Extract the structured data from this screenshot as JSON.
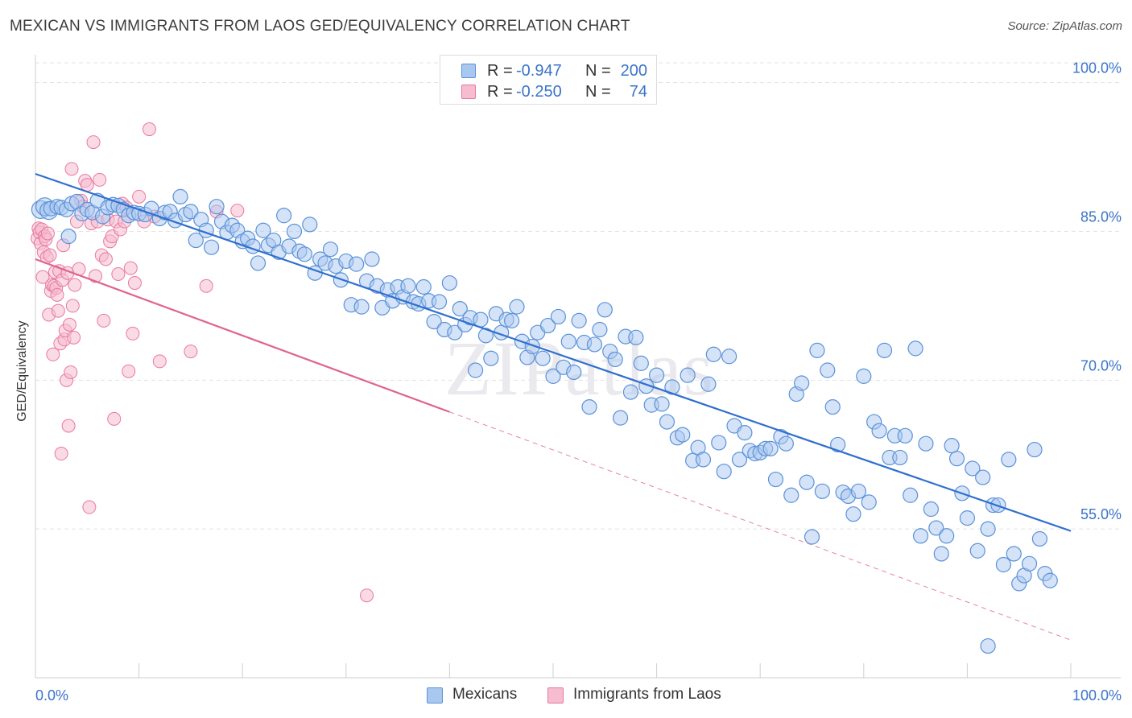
{
  "title": "MEXICAN VS IMMIGRANTS FROM LAOS GED/EQUIVALENCY CORRELATION CHART",
  "source": "Source: ZipAtlas.com",
  "watermark": "ZIPatlas",
  "legend": {
    "rows": [
      {
        "r_label": "R =",
        "r_value": "-0.947",
        "n_label": "N =",
        "n_value": "200"
      },
      {
        "r_label": "R =",
        "r_value": "-0.250",
        "n_label": "N =",
        "n_value": "74"
      }
    ]
  },
  "colors": {
    "blue_fill": "#a9c8f0",
    "blue_stroke": "#5b92d8",
    "blue_line": "#2f6fcf",
    "pink_fill": "#f6bcd0",
    "pink_stroke": "#e8799f",
    "pink_line": "#e0648f",
    "axis_text_blue": "#3a74c9",
    "grid": "#e3e3e3"
  },
  "chart_data": {
    "type": "scatter",
    "title": "MEXICAN VS IMMIGRANTS FROM LAOS GED/EQUIVALENCY CORRELATION CHART",
    "xlabel": "",
    "ylabel": "GED/Equivalency",
    "xlim": [
      0,
      100
    ],
    "ylim": [
      40,
      102
    ],
    "x_tick_labels": [
      "0.0%",
      "100.0%"
    ],
    "y_ticks": [
      55,
      70,
      85,
      100
    ],
    "y_tick_labels": [
      "55.0%",
      "70.0%",
      "85.0%",
      "100.0%"
    ],
    "grid": true,
    "legend_position": "top-center",
    "series": [
      {
        "name": "Mexicans",
        "color": "#5b92d8",
        "r": -0.947,
        "n": 200,
        "trend": {
          "x0": 0,
          "y0": 90.8,
          "x1": 100,
          "y1": 54.8
        },
        "points": [
          [
            0.5,
            87.2
          ],
          [
            0.9,
            87.5
          ],
          [
            1.3,
            87.1
          ],
          [
            1.5,
            87.3
          ],
          [
            2.1,
            87.5
          ],
          [
            2.5,
            87.4
          ],
          [
            3.0,
            87.2
          ],
          [
            3.2,
            84.5
          ],
          [
            3.5,
            87.8
          ],
          [
            4.0,
            88.0
          ],
          [
            4.5,
            86.8
          ],
          [
            5.0,
            87.2
          ],
          [
            5.5,
            86.9
          ],
          [
            6.0,
            88.1
          ],
          [
            6.5,
            86.5
          ],
          [
            7.0,
            87.4
          ],
          [
            7.5,
            87.7
          ],
          [
            8.0,
            87.6
          ],
          [
            8.5,
            87.2
          ],
          [
            9.0,
            86.6
          ],
          [
            9.5,
            86.9
          ],
          [
            10.0,
            86.8
          ],
          [
            10.6,
            86.7
          ],
          [
            11.2,
            87.3
          ],
          [
            12.0,
            86.3
          ],
          [
            12.5,
            86.9
          ],
          [
            13.0,
            87.0
          ],
          [
            13.5,
            86.1
          ],
          [
            14.0,
            88.5
          ],
          [
            14.5,
            86.7
          ],
          [
            15.0,
            87.0
          ],
          [
            15.5,
            84.1
          ],
          [
            16.0,
            86.2
          ],
          [
            16.5,
            85.1
          ],
          [
            17.0,
            83.4
          ],
          [
            17.5,
            87.5
          ],
          [
            18.0,
            86.0
          ],
          [
            18.5,
            84.9
          ],
          [
            19.0,
            85.6
          ],
          [
            19.5,
            85.1
          ],
          [
            20.0,
            84.0
          ],
          [
            20.5,
            84.3
          ],
          [
            21.0,
            83.5
          ],
          [
            21.5,
            81.8
          ],
          [
            22.0,
            85.1
          ],
          [
            22.5,
            83.6
          ],
          [
            23.0,
            84.1
          ],
          [
            23.5,
            82.9
          ],
          [
            24.0,
            86.6
          ],
          [
            24.5,
            83.5
          ],
          [
            25.0,
            85.0
          ],
          [
            25.5,
            83.0
          ],
          [
            26.0,
            82.7
          ],
          [
            26.5,
            85.7
          ],
          [
            27.0,
            80.8
          ],
          [
            27.5,
            82.2
          ],
          [
            28.0,
            81.8
          ],
          [
            28.5,
            83.2
          ],
          [
            29.0,
            81.5
          ],
          [
            29.5,
            80.1
          ],
          [
            30.0,
            82.0
          ],
          [
            30.5,
            77.6
          ],
          [
            31.0,
            81.7
          ],
          [
            31.5,
            77.4
          ],
          [
            32.0,
            80.0
          ],
          [
            32.5,
            82.2
          ],
          [
            33.0,
            79.5
          ],
          [
            33.5,
            77.3
          ],
          [
            34.0,
            79.1
          ],
          [
            34.5,
            78.0
          ],
          [
            35.0,
            79.4
          ],
          [
            35.5,
            78.4
          ],
          [
            36.0,
            79.5
          ],
          [
            36.5,
            77.9
          ],
          [
            37.0,
            77.7
          ],
          [
            37.5,
            79.4
          ],
          [
            38.0,
            78.0
          ],
          [
            38.5,
            75.9
          ],
          [
            39.0,
            77.9
          ],
          [
            39.5,
            75.1
          ],
          [
            40.0,
            79.8
          ],
          [
            40.5,
            74.8
          ],
          [
            41.0,
            77.2
          ],
          [
            41.5,
            75.6
          ],
          [
            42.0,
            76.3
          ],
          [
            42.5,
            71.0
          ],
          [
            43.0,
            76.1
          ],
          [
            43.5,
            74.5
          ],
          [
            44.0,
            72.2
          ],
          [
            44.5,
            76.7
          ],
          [
            45.0,
            74.8
          ],
          [
            45.5,
            76.1
          ],
          [
            46.0,
            76.0
          ],
          [
            46.5,
            77.4
          ],
          [
            47.0,
            73.9
          ],
          [
            47.5,
            72.3
          ],
          [
            48.0,
            73.4
          ],
          [
            48.5,
            74.8
          ],
          [
            49.0,
            72.2
          ],
          [
            49.5,
            75.5
          ],
          [
            50.0,
            70.4
          ],
          [
            50.5,
            76.4
          ],
          [
            51.0,
            71.3
          ],
          [
            51.5,
            73.9
          ],
          [
            52.0,
            70.8
          ],
          [
            52.5,
            76.0
          ],
          [
            53.0,
            73.8
          ],
          [
            53.5,
            67.3
          ],
          [
            54.0,
            73.6
          ],
          [
            54.5,
            75.1
          ],
          [
            55.0,
            77.1
          ],
          [
            55.5,
            72.9
          ],
          [
            56.0,
            72.1
          ],
          [
            56.5,
            66.2
          ],
          [
            57.0,
            74.4
          ],
          [
            57.5,
            68.8
          ],
          [
            58.0,
            74.3
          ],
          [
            58.5,
            71.7
          ],
          [
            59.0,
            69.4
          ],
          [
            59.5,
            67.5
          ],
          [
            60.0,
            70.5
          ],
          [
            60.5,
            67.6
          ],
          [
            61.0,
            65.8
          ],
          [
            61.5,
            69.3
          ],
          [
            62.0,
            64.2
          ],
          [
            62.5,
            64.5
          ],
          [
            63.0,
            70.5
          ],
          [
            63.5,
            61.9
          ],
          [
            64.0,
            63.2
          ],
          [
            64.5,
            62.0
          ],
          [
            65.0,
            69.6
          ],
          [
            65.5,
            72.6
          ],
          [
            66.0,
            63.7
          ],
          [
            66.5,
            60.8
          ],
          [
            67.0,
            72.4
          ],
          [
            67.5,
            65.4
          ],
          [
            68.0,
            62.0
          ],
          [
            68.5,
            64.7
          ],
          [
            69.0,
            62.9
          ],
          [
            69.5,
            62.6
          ],
          [
            70.0,
            62.7
          ],
          [
            70.5,
            63.1
          ],
          [
            71.0,
            63.1
          ],
          [
            71.5,
            60.0
          ],
          [
            72.0,
            64.3
          ],
          [
            72.5,
            63.6
          ],
          [
            73.0,
            58.4
          ],
          [
            73.5,
            68.6
          ],
          [
            74.0,
            69.7
          ],
          [
            74.5,
            59.7
          ],
          [
            75.0,
            54.2
          ],
          [
            75.5,
            73.0
          ],
          [
            76.0,
            58.8
          ],
          [
            76.5,
            71.0
          ],
          [
            77.0,
            67.3
          ],
          [
            77.5,
            63.5
          ],
          [
            78.0,
            58.7
          ],
          [
            78.5,
            58.3
          ],
          [
            79.0,
            56.5
          ],
          [
            79.5,
            58.8
          ],
          [
            80.0,
            70.4
          ],
          [
            80.5,
            57.7
          ],
          [
            81.0,
            65.8
          ],
          [
            81.5,
            64.9
          ],
          [
            82.0,
            73.0
          ],
          [
            82.5,
            62.2
          ],
          [
            83.0,
            64.4
          ],
          [
            83.5,
            62.2
          ],
          [
            84.0,
            64.4
          ],
          [
            84.5,
            58.4
          ],
          [
            85.0,
            73.2
          ],
          [
            85.5,
            54.3
          ],
          [
            86.0,
            63.6
          ],
          [
            86.5,
            57.0
          ],
          [
            87.0,
            55.1
          ],
          [
            87.5,
            52.5
          ],
          [
            88.0,
            54.3
          ],
          [
            88.5,
            63.4
          ],
          [
            89.0,
            62.1
          ],
          [
            89.5,
            58.6
          ],
          [
            90.0,
            56.1
          ],
          [
            90.5,
            61.1
          ],
          [
            91.0,
            52.8
          ],
          [
            91.5,
            60.2
          ],
          [
            92.0,
            55.0
          ],
          [
            92.5,
            57.4
          ],
          [
            93.0,
            57.4
          ],
          [
            93.5,
            51.4
          ],
          [
            94.0,
            62.0
          ],
          [
            94.5,
            52.5
          ],
          [
            95.0,
            49.5
          ],
          [
            95.5,
            50.3
          ],
          [
            96.0,
            51.5
          ],
          [
            96.5,
            63.0
          ],
          [
            97.0,
            54.0
          ],
          [
            97.5,
            50.5
          ],
          [
            98.0,
            49.8
          ],
          [
            92.0,
            43.2
          ]
        ]
      },
      {
        "name": "Immigrants from Laos",
        "color": "#e8799f",
        "r": -0.25,
        "n": 74,
        "trend": {
          "x0": 0,
          "y0": 82.2,
          "x1": 40,
          "y1": 66.8
        },
        "trend_dashed": {
          "x0": 40,
          "y0": 66.8,
          "x1": 100,
          "y1": 43.8
        },
        "points": [
          [
            0.2,
            84.3
          ],
          [
            0.3,
            85.3
          ],
          [
            0.4,
            84.9
          ],
          [
            0.5,
            83.8
          ],
          [
            0.6,
            85.2
          ],
          [
            0.7,
            80.4
          ],
          [
            0.8,
            82.9
          ],
          [
            0.9,
            84.5
          ],
          [
            1.0,
            84.2
          ],
          [
            1.1,
            82.4
          ],
          [
            1.2,
            84.8
          ],
          [
            1.3,
            76.6
          ],
          [
            1.4,
            82.6
          ],
          [
            1.5,
            79.0
          ],
          [
            1.6,
            79.6
          ],
          [
            1.7,
            72.6
          ],
          [
            1.8,
            79.5
          ],
          [
            1.9,
            80.9
          ],
          [
            2.0,
            79.3
          ],
          [
            2.1,
            78.6
          ],
          [
            2.2,
            77.0
          ],
          [
            2.3,
            81.0
          ],
          [
            2.4,
            73.7
          ],
          [
            2.5,
            62.6
          ],
          [
            2.6,
            80.1
          ],
          [
            2.7,
            83.6
          ],
          [
            2.8,
            74.1
          ],
          [
            2.9,
            75.0
          ],
          [
            3.0,
            70.0
          ],
          [
            3.1,
            80.8
          ],
          [
            3.2,
            65.4
          ],
          [
            3.3,
            75.6
          ],
          [
            3.4,
            70.8
          ],
          [
            3.5,
            91.3
          ],
          [
            3.6,
            77.5
          ],
          [
            3.7,
            74.3
          ],
          [
            3.8,
            79.6
          ],
          [
            4.0,
            86.0
          ],
          [
            4.2,
            81.2
          ],
          [
            4.4,
            88.1
          ],
          [
            4.6,
            87.5
          ],
          [
            4.8,
            90.1
          ],
          [
            5.0,
            89.7
          ],
          [
            5.2,
            57.2
          ],
          [
            5.4,
            85.8
          ],
          [
            5.6,
            94.0
          ],
          [
            5.8,
            80.5
          ],
          [
            6.0,
            86.0
          ],
          [
            6.2,
            90.2
          ],
          [
            6.4,
            82.6
          ],
          [
            6.6,
            76.0
          ],
          [
            6.8,
            82.2
          ],
          [
            7.0,
            86.2
          ],
          [
            7.2,
            84.0
          ],
          [
            7.4,
            84.5
          ],
          [
            7.6,
            66.1
          ],
          [
            7.8,
            86.0
          ],
          [
            8.0,
            80.7
          ],
          [
            8.2,
            85.2
          ],
          [
            8.4,
            87.8
          ],
          [
            8.6,
            86.0
          ],
          [
            8.8,
            87.4
          ],
          [
            9.0,
            70.9
          ],
          [
            9.2,
            81.3
          ],
          [
            9.4,
            74.7
          ],
          [
            9.6,
            79.8
          ],
          [
            10.0,
            88.5
          ],
          [
            10.5,
            86.0
          ],
          [
            11.0,
            95.3
          ],
          [
            11.5,
            86.5
          ],
          [
            12.0,
            71.9
          ],
          [
            15.0,
            72.9
          ],
          [
            16.5,
            79.5
          ],
          [
            17.5,
            87.0
          ],
          [
            19.5,
            87.1
          ],
          [
            32.0,
            48.3
          ]
        ]
      }
    ]
  }
}
